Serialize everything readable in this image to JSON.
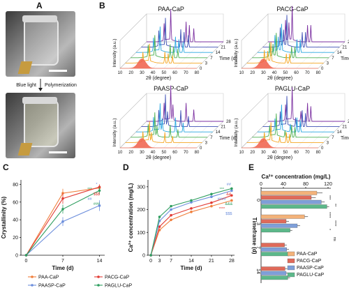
{
  "panel_labels": {
    "A": "A",
    "B": "B",
    "C": "C",
    "D": "D",
    "E": "E"
  },
  "panel_a": {
    "arrow_label_left": "Blue light",
    "arrow_label_right": "Polymerization"
  },
  "xrd": {
    "titles": [
      "PAA-CaP",
      "PACG-CaP",
      "PAASP-CaP",
      "PAGLU-CaP"
    ],
    "xlabel": "2θ (degree)",
    "ylabel": "Intensity (a.u.)",
    "depth_label": "Time (d)",
    "x_ticks": [
      "10",
      "20",
      "30",
      "40",
      "50",
      "60",
      "70",
      "80"
    ],
    "time_ticks": [
      "0",
      "3",
      "7",
      "14",
      "21",
      "28"
    ],
    "trace_colors": [
      "#f0604a",
      "#f5a623",
      "#4caf50",
      "#29a8e0",
      "#3f51b5",
      "#7b2fa0"
    ]
  },
  "chart_data": [
    {
      "type": "line",
      "panel": "C",
      "xlabel": "Time (d)",
      "ylabel": "Crystallinity (%)",
      "x": [
        0,
        7,
        14
      ],
      "x_ticks": [
        "0",
        "7",
        "14"
      ],
      "y_ticks": [
        "0",
        "20",
        "40",
        "60",
        "80"
      ],
      "xlim": [
        -1,
        15
      ],
      "ylim": [
        0,
        85
      ],
      "series": [
        {
          "name": "PAA-CaP",
          "color": "#f07f3c",
          "values": [
            0,
            70,
            76
          ],
          "err": [
            0,
            5,
            3
          ]
        },
        {
          "name": "PACG-CaP",
          "color": "#e23b34",
          "values": [
            0,
            64,
            77
          ],
          "err": [
            0,
            6,
            3
          ]
        },
        {
          "name": "PAASP-CaP",
          "color": "#6d8fdc",
          "values": [
            0,
            38,
            56
          ],
          "err": [
            0,
            5,
            6
          ]
        },
        {
          "name": "PAGLU-CaP",
          "color": "#2e9e5f",
          "values": [
            0,
            52,
            73
          ],
          "err": [
            0,
            5,
            4
          ]
        }
      ],
      "annotations": [
        "*",
        "***",
        "$$$",
        "##",
        "###"
      ]
    },
    {
      "type": "line",
      "panel": "D",
      "xlabel": "Time (d)",
      "ylabel": "Ca²⁺ concentration (mg/L)",
      "x": [
        0,
        3,
        7,
        14,
        21,
        28
      ],
      "x_ticks": [
        "0",
        "3",
        "7",
        "14",
        "21",
        "28"
      ],
      "y_ticks": [
        "0",
        "100",
        "200",
        "300"
      ],
      "xlim": [
        -1,
        29
      ],
      "ylim": [
        0,
        330
      ],
      "series": [
        {
          "name": "PAA-CaP",
          "color": "#f07f3c",
          "values": [
            0,
            110,
            155,
            190,
            215,
            240
          ]
        },
        {
          "name": "PACG-CaP",
          "color": "#e23b34",
          "values": [
            0,
            125,
            175,
            205,
            230,
            262
          ]
        },
        {
          "name": "PAASP-CaP",
          "color": "#6d8fdc",
          "values": [
            0,
            150,
            200,
            232,
            256,
            283
          ]
        },
        {
          "name": "PAGLU-CaP",
          "color": "#2e9e5f",
          "values": [
            0,
            168,
            215,
            240,
            268,
            292
          ]
        }
      ],
      "annotations": [
        "##",
        "***",
        "&&",
        "####",
        "&&&",
        "****",
        "$$$"
      ]
    },
    {
      "type": "bar",
      "panel": "E",
      "title": "Ca²⁺ concentration (mg/L)",
      "ylabel": "Timeframe (d)",
      "categories": [
        "0",
        "3",
        "7",
        "14"
      ],
      "x_ticks": [
        "0",
        "40",
        "80",
        "120"
      ],
      "xlim": [
        0,
        125
      ],
      "series": [
        {
          "name": "PAA-CaP",
          "color": "#f3b27a",
          "values": [
            100,
            78,
            0,
            0
          ],
          "err": [
            10,
            6,
            0,
            0
          ]
        },
        {
          "name": "PACG-CaP",
          "color": "#e06a5a",
          "values": [
            90,
            45,
            42,
            43
          ],
          "err": [
            8,
            5,
            4,
            4
          ]
        },
        {
          "name": "PAASP-CaP",
          "color": "#7f9fd9",
          "values": [
            108,
            65,
            46,
            45
          ],
          "err": [
            6,
            5,
            4,
            4
          ]
        },
        {
          "name": "PAGLU-CaP",
          "color": "#5cb88a",
          "values": [
            118,
            52,
            50,
            48
          ],
          "err": [
            4,
            4,
            4,
            4
          ]
        }
      ],
      "annotations": [
        "***",
        "**",
        "****",
        "****",
        "*",
        "ns"
      ]
    }
  ],
  "legend_c": [
    "PAA-CaP",
    "PACG-CaP",
    "PAASP-CaP",
    "PAGLU-CaP"
  ],
  "legend_e": [
    "PAA-CaP",
    "PACG-CaP",
    "PAASP-CaP",
    "PAGLU-CaP"
  ]
}
